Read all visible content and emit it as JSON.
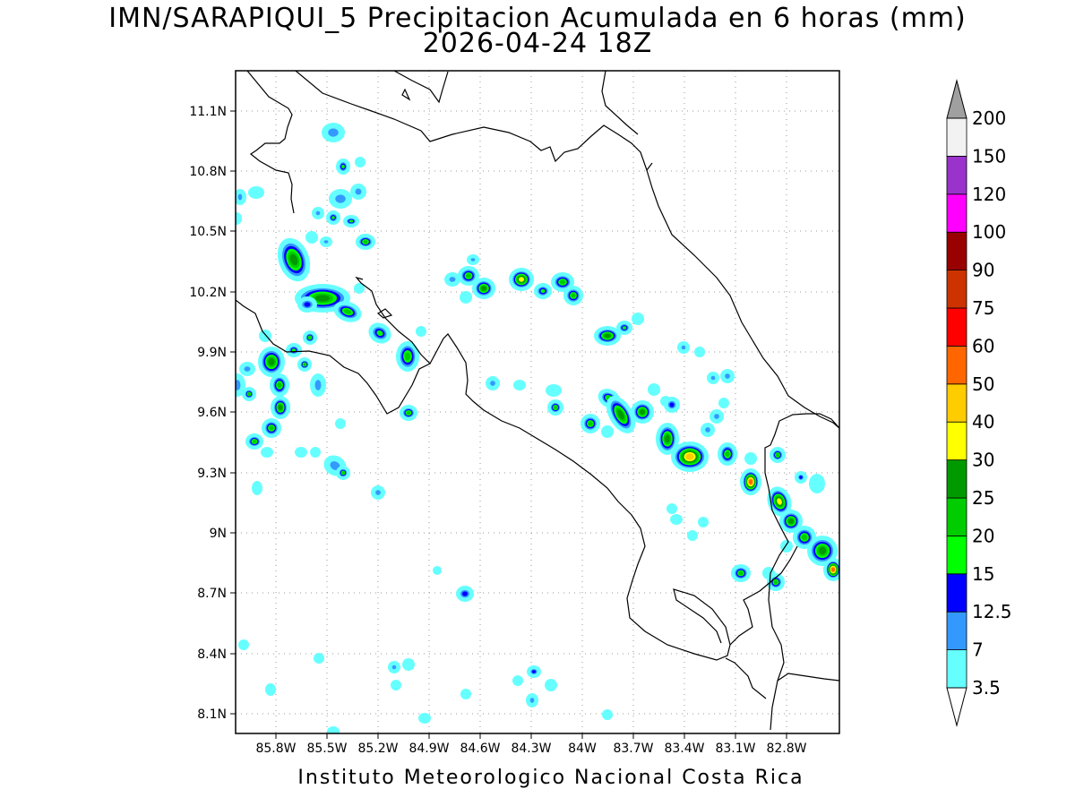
{
  "title": {
    "line1": "IMN/SARAPIQUI_5 Precipitacion Acumulada en 6 horas (mm)",
    "line2": "2026-04-24 18Z"
  },
  "credit": "Instituto Meteorologico Nacional Costa Rica",
  "map": {
    "lon_ticks": [
      "85.8W",
      "85.5W",
      "85.2W",
      "84.9W",
      "84.6W",
      "84.3W",
      "84W",
      "83.7W",
      "83.4W",
      "83.1W",
      "82.8W"
    ],
    "lat_ticks": [
      "11.1N",
      "10.8N",
      "10.5N",
      "10.2N",
      "9.9N",
      "9.6N",
      "9.3N",
      "9N",
      "8.7N",
      "8.4N",
      "8.1N"
    ]
  },
  "colorbar": {
    "levels": [
      "3.5",
      "7",
      "12.5",
      "15",
      "20",
      "25",
      "30",
      "40",
      "50",
      "60",
      "75",
      "90",
      "100",
      "120",
      "150",
      "200"
    ],
    "colors": [
      "#66ffff",
      "#3399ff",
      "#0000ff",
      "#00ff00",
      "#00cc00",
      "#009900",
      "#ffff00",
      "#ffcc00",
      "#ff6600",
      "#ff0000",
      "#cc3300",
      "#990000",
      "#ff00ff",
      "#9933cc",
      "#f2f2f2",
      "#a0a0a0"
    ]
  }
}
